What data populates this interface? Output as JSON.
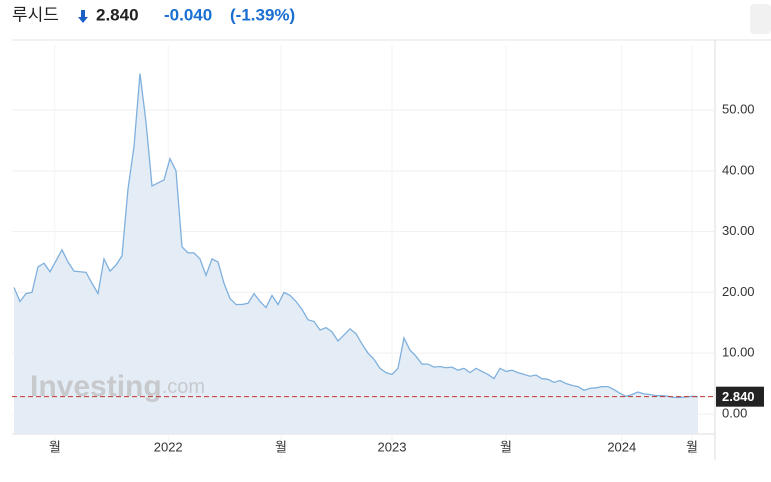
{
  "header": {
    "name": "루시드",
    "price": 2.84,
    "price_label": "2.840",
    "change": "-0.040",
    "change_pct": "(-1.39%)"
  },
  "watermark": {
    "brand": "Investing",
    "suffix": ".com"
  },
  "chart_data": {
    "type": "area",
    "color": "#7fb0dd",
    "fill": "#e4edf6",
    "grid": true,
    "values": [
      20.8,
      18.5,
      19.8,
      20.0,
      24.2,
      24.8,
      23.4,
      25.2,
      27,
      25,
      23.5,
      23.4,
      23.3,
      21.5,
      19.8,
      25.5,
      23.5,
      24.5,
      26,
      37,
      44,
      56,
      48,
      37.5,
      38,
      38.5,
      42,
      40,
      27.5,
      26.5,
      26.5,
      25.5,
      22.8,
      25.5,
      25,
      21.5,
      19,
      18,
      18,
      18.2,
      19.8,
      18.5,
      17.5,
      19.5,
      18,
      20,
      19.5,
      18.5,
      17.2,
      15.5,
      15.2,
      13.8,
      14.2,
      13.5,
      12,
      13,
      14,
      13.2,
      11.5,
      10,
      9,
      7.5,
      6.8,
      6.5,
      7.5,
      12.5,
      10.5,
      9.5,
      8.2,
      8.2,
      7.7,
      7.8,
      7.6,
      7.7,
      7.2,
      7.5,
      6.8,
      7.5,
      7,
      6.5,
      5.8,
      7.5,
      7,
      7.2,
      6.8,
      6.5,
      6.2,
      6.4,
      5.8,
      5.7,
      5.2,
      5.5,
      5,
      4.7,
      4.5,
      3.9,
      4.2,
      4.3,
      4.5,
      4.5,
      4,
      3.4,
      2.9,
      3.2,
      3.6,
      3.3,
      3.2,
      3,
      3,
      2.9,
      2.7,
      2.7,
      2.8,
      2.9,
      2.84
    ],
    "xlim": [
      0,
      114
    ],
    "xticks": [
      {
        "value": 6.8,
        "label": "월"
      },
      {
        "value": 25.7,
        "label": "2022"
      },
      {
        "value": 44.5,
        "label": "월"
      },
      {
        "value": 63,
        "label": "2023"
      },
      {
        "value": 82,
        "label": "월"
      },
      {
        "value": 101.3,
        "label": "2024"
      },
      {
        "value": 113,
        "label": "월"
      }
    ],
    "ylim": [
      -3.3,
      60.7
    ],
    "yticks": [
      {
        "value": 0,
        "label": "0.00"
      },
      {
        "value": 10,
        "label": "10.00"
      },
      {
        "value": 20,
        "label": "20.00"
      },
      {
        "value": 30,
        "label": "30.00"
      },
      {
        "value": 40,
        "label": "40.00"
      },
      {
        "value": 50,
        "label": "50.00"
      }
    ]
  }
}
